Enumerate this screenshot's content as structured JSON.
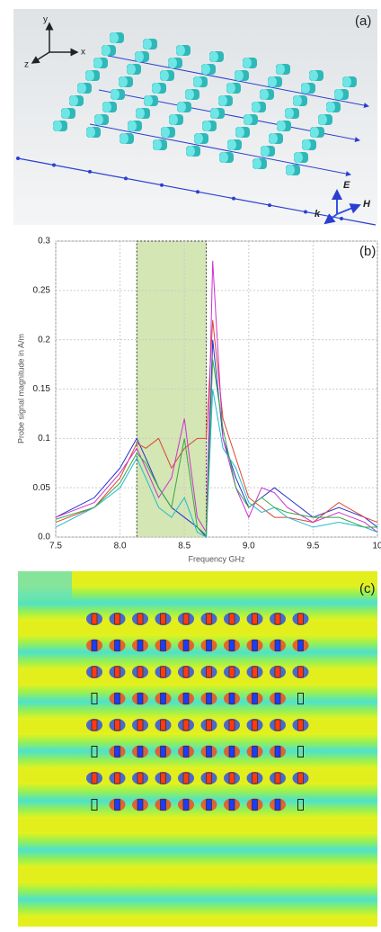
{
  "panel_labels": {
    "a": "(a)",
    "c": "(c)"
  },
  "axes_a": {
    "x": "x",
    "y": "y",
    "z": "z"
  },
  "field_labels": {
    "E": "E",
    "H": "H",
    "k": "k"
  },
  "chart_data": {
    "type": "line",
    "panel_label": "(b)",
    "x_label": "Frequency GHz",
    "y_label": "Probe signal magnitude in A/m",
    "x": [
      7.5,
      7.8,
      8.0,
      8.13,
      8.2,
      8.3,
      8.4,
      8.5,
      8.6,
      8.67,
      8.72,
      8.8,
      8.9,
      9.0,
      9.1,
      9.2,
      9.3,
      9.5,
      9.7,
      9.9,
      10
    ],
    "series": [
      {
        "color": "#2233cc",
        "values": [
          0.02,
          0.04,
          0.07,
          0.1,
          0.08,
          0.05,
          0.03,
          0.02,
          0.01,
          0.0,
          0.2,
          0.1,
          0.06,
          0.03,
          0.04,
          0.05,
          0.04,
          0.02,
          0.03,
          0.02,
          0.01
        ]
      },
      {
        "color": "#dd4433",
        "values": [
          0.015,
          0.03,
          0.06,
          0.095,
          0.09,
          0.1,
          0.07,
          0.09,
          0.1,
          0.1,
          0.22,
          0.12,
          0.08,
          0.04,
          0.03,
          0.02,
          0.02,
          0.015,
          0.035,
          0.02,
          0.015
        ]
      },
      {
        "color": "#cc33cc",
        "values": [
          0.02,
          0.035,
          0.065,
          0.09,
          0.07,
          0.04,
          0.06,
          0.12,
          0.02,
          0.005,
          0.28,
          0.1,
          0.05,
          0.02,
          0.05,
          0.045,
          0.03,
          0.015,
          0.025,
          0.015,
          0.005
        ]
      },
      {
        "color": "#22bbcc",
        "values": [
          0.01,
          0.03,
          0.05,
          0.08,
          0.06,
          0.03,
          0.02,
          0.04,
          0.005,
          0.0,
          0.15,
          0.09,
          0.07,
          0.035,
          0.025,
          0.03,
          0.02,
          0.01,
          0.015,
          0.01,
          0.005
        ]
      },
      {
        "color": "#33aa44",
        "values": [
          0.018,
          0.03,
          0.055,
          0.085,
          0.075,
          0.05,
          0.03,
          0.1,
          0.01,
          0.002,
          0.18,
          0.11,
          0.05,
          0.03,
          0.04,
          0.03,
          0.025,
          0.02,
          0.02,
          0.01,
          0.01
        ]
      }
    ],
    "highlight": {
      "x": [
        8.13,
        8.67
      ],
      "color": "#c8e0a0"
    },
    "xlim": [
      7.5,
      10
    ],
    "xticks": [
      7.5,
      {
        "value": 8,
        "label": "8.0"
      },
      8.5,
      {
        "value": 9,
        "label": "9.0"
      },
      9.5,
      10
    ],
    "ylim": [
      0,
      0.3
    ],
    "yticks": [
      {
        "value": 0,
        "label": "0.0"
      },
      0.05,
      0.1,
      0.15,
      0.2,
      0.25,
      0.3
    ],
    "grid": true
  }
}
